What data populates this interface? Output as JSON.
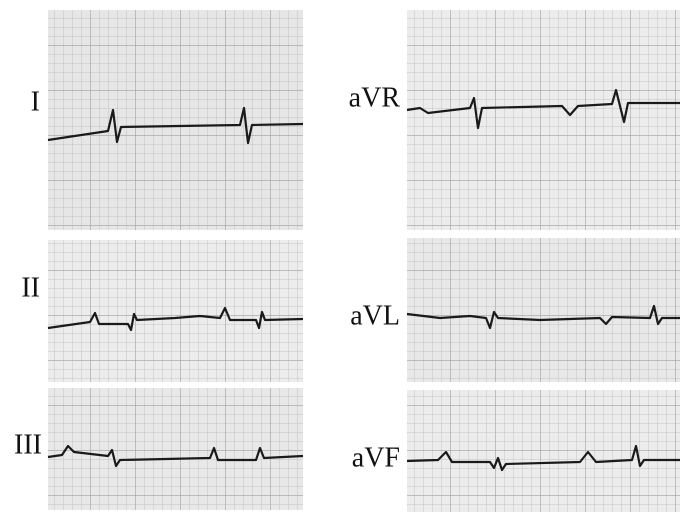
{
  "leads": {
    "left": [
      "I",
      "II",
      "III"
    ],
    "right": [
      "aVR",
      "aVL",
      "aVF"
    ]
  }
}
